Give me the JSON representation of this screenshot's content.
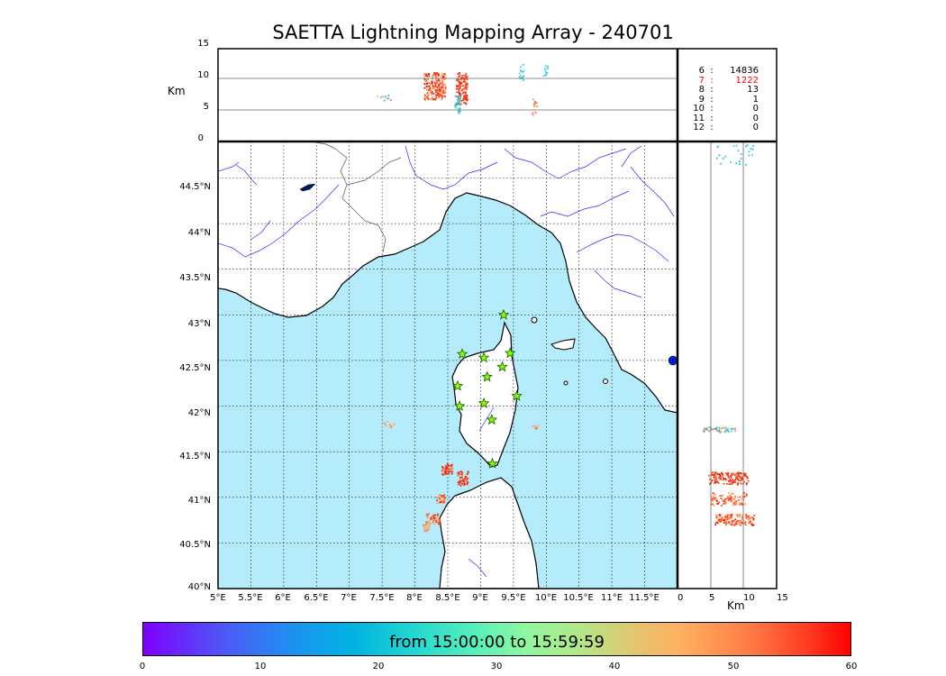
{
  "title": "SAETTA Lightning Mapping Array - 240701",
  "colorbar_label": "from 15:00:00 to 15:59:59",
  "colorbar_ticks": [
    "0",
    "10",
    "20",
    "30",
    "40",
    "50",
    "60"
  ],
  "top_panel": {
    "ylabel": "Km",
    "yticks": [
      "15",
      "10",
      "5",
      "0"
    ]
  },
  "right_panel": {
    "xlabel": "Km",
    "xticks": [
      "0",
      "5",
      "10",
      "15"
    ]
  },
  "map": {
    "lat_ticks": [
      "44.5°N",
      "44°N",
      "43.5°N",
      "43°N",
      "42.5°N",
      "42°N",
      "41.5°N",
      "41°N",
      "40.5°N",
      "40°N"
    ],
    "lon_ticks": [
      "5°E",
      "5.5°E",
      "6°E",
      "6.5°E",
      "7°E",
      "7.5°E",
      "8°E",
      "8.5°E",
      "9°E",
      "9.5°E",
      "10°E",
      "10.5°E",
      "11°E",
      "11.5°E"
    ],
    "stations": [
      {
        "lon": 9.35,
        "lat": 43.0
      },
      {
        "lon": 8.72,
        "lat": 42.57
      },
      {
        "lon": 9.05,
        "lat": 42.53
      },
      {
        "lon": 9.45,
        "lat": 42.58
      },
      {
        "lon": 9.33,
        "lat": 42.43
      },
      {
        "lon": 9.1,
        "lat": 42.32
      },
      {
        "lon": 8.65,
        "lat": 42.22
      },
      {
        "lon": 9.55,
        "lat": 42.11
      },
      {
        "lon": 8.68,
        "lat": 42.0
      },
      {
        "lon": 9.05,
        "lat": 42.03
      },
      {
        "lon": 9.17,
        "lat": 41.85
      },
      {
        "lon": 9.18,
        "lat": 41.37
      }
    ]
  },
  "stats": [
    {
      "level": "6",
      "sep": ":",
      "count": "14836",
      "color": "#000000"
    },
    {
      "level": "7",
      "sep": ":",
      "count": "1222",
      "color": "#ff0000"
    },
    {
      "level": "8",
      "sep": ":",
      "count": "13",
      "color": "#000000"
    },
    {
      "level": "9",
      "sep": ":",
      "count": "1",
      "color": "#000000"
    },
    {
      "level": "10",
      "sep": ":",
      "count": "0",
      "color": "#000000"
    },
    {
      "level": "11",
      "sep": ":",
      "count": "0",
      "color": "#000000"
    },
    {
      "level": "12",
      "sep": ":",
      "count": "0",
      "color": "#000000"
    }
  ],
  "colors": {
    "sea": "#b5ecfb",
    "river": "#2b2bff",
    "border": "#555555",
    "frame": "#000000",
    "station": "#7fff00"
  }
}
